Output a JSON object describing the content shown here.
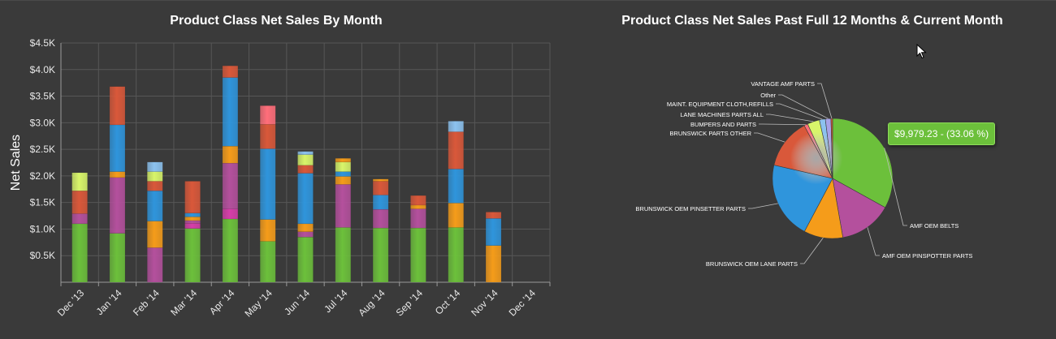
{
  "colors": {
    "background": "#3a3a3a",
    "grid": "#555555",
    "green": "#6cc03b",
    "purple": "#b4509d",
    "magenta": "#d63ea9",
    "orange": "#f59c1a",
    "blue": "#2f95dc",
    "red": "#d9583a",
    "yellow": "#d8f56a",
    "lightblue": "#8cc2ef",
    "pink": "#ff6e7a",
    "lavender": "#a7a3e8"
  },
  "left_chart": {
    "title": "Product Class Net Sales By Month"
  },
  "right_chart": {
    "title": "Product Class Net Sales Past Full 12 Months & Current Month",
    "tooltip": "$9,979.23 - (33.06 %)"
  },
  "chart_data": [
    {
      "type": "bar",
      "stacked": true,
      "title": "Product Class Net Sales By Month",
      "ylabel": "Net Sales",
      "xlabel": "",
      "ylim": [
        0,
        4500
      ],
      "y_ticks": [
        "$0.5K",
        "$1.0K",
        "$1.5K",
        "$2.0K",
        "$2.5K",
        "$3.0K",
        "$3.5K",
        "$4.0K",
        "$4.5K"
      ],
      "y_tick_values": [
        500,
        1000,
        1500,
        2000,
        2500,
        3000,
        3500,
        4000,
        4500
      ],
      "grid": true,
      "legend": "none",
      "categories": [
        "Dec '13",
        "Jan '14",
        "Feb '14",
        "Mar '14",
        "Apr '14",
        "May '14",
        "Jun '14",
        "Jul '14",
        "Aug '14",
        "Sep '14",
        "Oct '14",
        "Nov '14",
        "Dec '14"
      ],
      "series": [
        {
          "color": "green",
          "values": [
            1100,
            920,
            0,
            1010,
            1190,
            770,
            850,
            1030,
            1020,
            1020,
            1030,
            0,
            0
          ]
        },
        {
          "color": "magenta",
          "values": [
            0,
            0,
            0,
            100,
            190,
            0,
            0,
            0,
            0,
            0,
            0,
            0,
            0
          ]
        },
        {
          "color": "purple",
          "values": [
            190,
            1050,
            650,
            50,
            860,
            0,
            100,
            810,
            350,
            360,
            0,
            0,
            0
          ]
        },
        {
          "color": "orange",
          "values": [
            0,
            110,
            500,
            70,
            320,
            410,
            150,
            150,
            0,
            70,
            460,
            690,
            0
          ]
        },
        {
          "color": "blue",
          "values": [
            0,
            880,
            570,
            70,
            1290,
            1330,
            950,
            90,
            270,
            0,
            640,
            510,
            0
          ]
        },
        {
          "color": "red",
          "values": [
            430,
            720,
            180,
            600,
            220,
            460,
            150,
            0,
            260,
            180,
            700,
            120,
            0
          ]
        },
        {
          "color": "yellow",
          "values": [
            340,
            0,
            180,
            0,
            0,
            0,
            200,
            180,
            0,
            0,
            0,
            0,
            0
          ]
        },
        {
          "color": "pink",
          "values": [
            0,
            0,
            0,
            0,
            0,
            350,
            0,
            0,
            0,
            0,
            0,
            0,
            0
          ]
        },
        {
          "color": "lightblue",
          "values": [
            0,
            0,
            180,
            0,
            0,
            0,
            60,
            0,
            0,
            0,
            200,
            0,
            0
          ]
        },
        {
          "color": "orange",
          "values": [
            0,
            0,
            0,
            0,
            0,
            0,
            0,
            70,
            40,
            0,
            0,
            0,
            0
          ]
        }
      ]
    },
    {
      "type": "pie",
      "title": "Product Class Net Sales Past Full 12 Months & Current Month",
      "slices": [
        {
          "label": "AMF OEM BELTS",
          "percent": 33.06,
          "value": 9979.23,
          "color": "green"
        },
        {
          "label": "AMF OEM PINSPOTTER PARTS",
          "percent": 14.2,
          "color": "purple"
        },
        {
          "label": "BRUNSWICK OEM LANE PARTS",
          "percent": 10.5,
          "color": "orange"
        },
        {
          "label": "BRUNSWICK OEM PINSETTER PARTS",
          "percent": 20.8,
          "color": "blue"
        },
        {
          "label": "BRUNSWICK PARTS OTHER",
          "percent": 13.6,
          "color": "red"
        },
        {
          "label": "BUMPERS AND PARTS",
          "percent": 1.0,
          "color": "pink"
        },
        {
          "label": "LANE MACHINES PARTS ALL",
          "percent": 3.3,
          "color": "yellow"
        },
        {
          "label": "MAINT. EQUIPMENT CLOTH,REFILLS",
          "percent": 1.6,
          "color": "lightblue"
        },
        {
          "label": "Other",
          "percent": 1.5,
          "color": "lavender"
        },
        {
          "label": "VANTAGE AMF PARTS",
          "percent": 0.44,
          "color": "red"
        }
      ]
    }
  ]
}
